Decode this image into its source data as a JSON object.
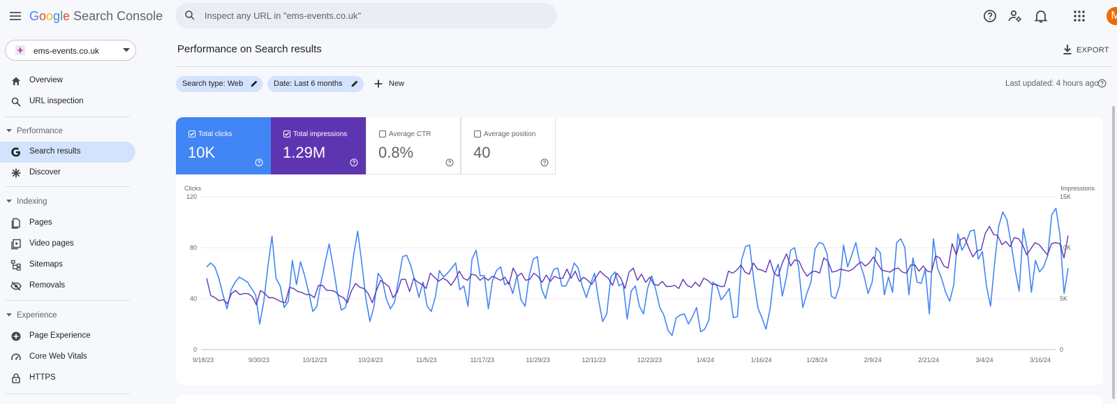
{
  "app": {
    "logo": {
      "letters": [
        "G",
        "o",
        "o",
        "g",
        "l",
        "e"
      ],
      "product": "Search Console"
    },
    "search": {
      "placeholder": "Inspect any URL in \"ems-events.co.uk\"",
      "value": ""
    },
    "avatar_letter": "M",
    "icons": [
      "menu-icon",
      "search-icon",
      "help-icon",
      "manage-users-icon",
      "notifications-icon",
      "apps-icon"
    ]
  },
  "property": {
    "name": "ems-events.co.uk"
  },
  "sidebar": {
    "overview": "Overview",
    "url_inspection": "URL inspection",
    "performance_section": "Performance",
    "search_results": "Search results",
    "discover": "Discover",
    "indexing_section": "Indexing",
    "pages": "Pages",
    "video_pages": "Video pages",
    "sitemaps": "Sitemaps",
    "removals": "Removals",
    "experience_section": "Experience",
    "page_experience": "Page Experience",
    "core_web_vitals": "Core Web Vitals",
    "https": "HTTPS"
  },
  "header": {
    "title": "Performance on Search results",
    "export": "EXPORT",
    "filters": {
      "search_type": "Search type: Web",
      "date": "Date: Last 6 months",
      "new": "New"
    },
    "last_updated": "Last updated: 4 hours ago"
  },
  "metrics": {
    "clicks": {
      "label": "Total clicks",
      "value": "10K",
      "checked": true
    },
    "impressions": {
      "label": "Total impressions",
      "value": "1.29M",
      "checked": true
    },
    "ctr": {
      "label": "Average CTR",
      "value": "0.8%",
      "checked": false
    },
    "position": {
      "label": "Average position",
      "value": "40",
      "checked": false
    }
  },
  "colors": {
    "clicks": "#4285f4",
    "impressions": "#5e35b1",
    "active_nav": "#d3e3fd"
  },
  "chart_data": {
    "type": "line",
    "left_axis_title": "Clicks",
    "right_axis_title": "Impressions",
    "left_ticks": [
      "0",
      "40",
      "80",
      "120"
    ],
    "left_ylim": [
      0,
      120
    ],
    "right_ticks": [
      "0",
      "5K",
      "10K",
      "15K"
    ],
    "right_ylim": [
      0,
      15000
    ],
    "x_tick_labels": [
      "9/18/23",
      "9/30/23",
      "10/12/23",
      "10/24/23",
      "11/5/23",
      "11/17/23",
      "11/29/23",
      "12/11/23",
      "12/23/23",
      "1/4/24",
      "1/16/24",
      "1/28/24",
      "2/9/24",
      "2/21/24",
      "3/4/24",
      "3/16/24"
    ],
    "x_start": "9/18/23",
    "grid": true,
    "series": [
      {
        "name": "Clicks",
        "axis": "left",
        "color": "#4285f4",
        "values": [
          65,
          68,
          65,
          56,
          43,
          32,
          47,
          53,
          57,
          55,
          53,
          48,
          43,
          20,
          38,
          65,
          89,
          56,
          50,
          33,
          38,
          70,
          51,
          69,
          58,
          45,
          30,
          34,
          53,
          68,
          83,
          65,
          45,
          31,
          33,
          49,
          74,
          93,
          68,
          40,
          22,
          34,
          60,
          55,
          40,
          32,
          37,
          55,
          73,
          74,
          66,
          54,
          41,
          53,
          34,
          30,
          41,
          62,
          57,
          60,
          64,
          68,
          47,
          50,
          34,
          71,
          78,
          58,
          58,
          32,
          54,
          62,
          65,
          51,
          53,
          44,
          58,
          39,
          34,
          58,
          71,
          73,
          48,
          40,
          54,
          63,
          64,
          50,
          50,
          57,
          68,
          64,
          50,
          41,
          51,
          60,
          39,
          22,
          28,
          57,
          61,
          50,
          52,
          24,
          46,
          50,
          34,
          28,
          48,
          58,
          47,
          33,
          27,
          15,
          11,
          25,
          27,
          28,
          20,
          26,
          33,
          14,
          16,
          23,
          53,
          50,
          39,
          43,
          48,
          25,
          26,
          70,
          81,
          82,
          55,
          33,
          25,
          16,
          32,
          59,
          67,
          42,
          57,
          78,
          80,
          64,
          33,
          44,
          53,
          79,
          84,
          83,
          75,
          42,
          40,
          50,
          82,
          65,
          74,
          84,
          68,
          58,
          44,
          53,
          80,
          76,
          43,
          57,
          45,
          84,
          87,
          80,
          43,
          72,
          53,
          52,
          63,
          28,
          87,
          64,
          56,
          45,
          38,
          51,
          91,
          78,
          84,
          93,
          94,
          71,
          77,
          50,
          34,
          68,
          97,
          108,
          102,
          84,
          63,
          46,
          95,
          79,
          45,
          70,
          61,
          65,
          74,
          106,
          111,
          90,
          44,
          64
        ]
      },
      {
        "name": "Impressions",
        "axis": "right",
        "color": "#5e35b1",
        "values": [
          7000,
          5300,
          5100,
          4800,
          4900,
          4500,
          5500,
          5800,
          5400,
          5500,
          5500,
          5200,
          4400,
          5800,
          5500,
          5100,
          5100,
          4900,
          4700,
          4600,
          6100,
          6000,
          5700,
          5600,
          5400,
          5400,
          5100,
          6300,
          6300,
          5800,
          5800,
          5700,
          5300,
          5100,
          4600,
          5800,
          6500,
          6100,
          6000,
          5500,
          4600,
          5800,
          6800,
          6500,
          6200,
          5100,
          5600,
          6900,
          6900,
          5700,
          7000,
          6600,
          6400,
          6000,
          7500,
          7100,
          6700,
          7000,
          6800,
          6300,
          6900,
          7700,
          7000,
          6800,
          7400,
          7300,
          6800,
          7100,
          6800,
          7200,
          7000,
          6800,
          7100,
          6400,
          8000,
          7200,
          7500,
          6800,
          6900,
          7500,
          7200,
          6600,
          7300,
          6700,
          7200,
          7000,
          7000,
          7900,
          7000,
          7700,
          6700,
          7100,
          6800,
          6400,
          7100,
          7700,
          7300,
          7000,
          6300,
          7500,
          7000,
          6000,
          7600,
          8000,
          6800,
          7400,
          6600,
          7100,
          6400,
          6300,
          6700,
          6200,
          6200,
          6300,
          6000,
          6900,
          6300,
          6100,
          6600,
          6200,
          7000,
          6800,
          6400,
          6400,
          6200,
          6200,
          7700,
          7500,
          7800,
          8300,
          7600,
          7400,
          8500,
          7900,
          7800,
          7600,
          8800,
          7500,
          7200,
          8500,
          9400,
          8200,
          8800,
          8700,
          7800,
          7200,
          7600,
          7700,
          7500,
          9000,
          8700,
          7600,
          7700,
          7900,
          7800,
          7700,
          7900,
          8300,
          8600,
          8200,
          8500,
          9100,
          8400,
          7800,
          7700,
          7600,
          7900,
          8000,
          7600,
          7500,
          8300,
          8300,
          7700,
          8200,
          7700,
          7600,
          9200,
          9000,
          8200,
          8000,
          10400,
          9300,
          10800,
          11000,
          10000,
          9100,
          9700,
          9800,
          11400,
          12100,
          11300,
          11200,
          10300,
          10600,
          10100,
          11000,
          10900,
          10300,
          9300,
          9900,
          10500,
          10300,
          9800,
          9300,
          10400,
          10500,
          10400,
          9000,
          11200
        ]
      }
    ]
  }
}
